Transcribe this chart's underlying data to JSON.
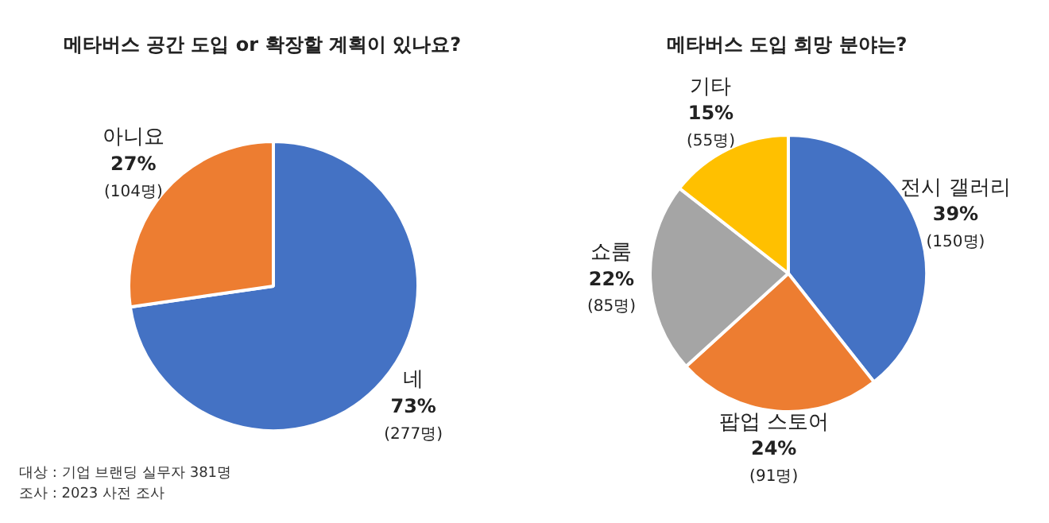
{
  "chart_data": [
    {
      "type": "pie",
      "title": "메타버스 공간 도입 or 확장할 계획이 있나요?",
      "categories": [
        "네",
        "아니요"
      ],
      "values": [
        277,
        104
      ],
      "value_labels": [
        "73%\n(277명)",
        "27%\n(104명)"
      ],
      "colors": [
        "#4472c4",
        "#ed7d31"
      ],
      "legend": false,
      "annotations": [
        "대상 : 기업 브랜딩 실무자 381명",
        "조사 : 2023 사전 조사"
      ]
    },
    {
      "type": "pie",
      "title": "메타버스 도입 희망 분야는?",
      "categories": [
        "전시 갤러리",
        "팝업 스토어",
        "쇼룸",
        "기타"
      ],
      "values": [
        150,
        91,
        85,
        55
      ],
      "value_labels": [
        "39%\n(150명)",
        "24%\n(91명)",
        "22%\n(85명)",
        "15%\n(55명)"
      ],
      "colors": [
        "#4472c4",
        "#ed7d31",
        "#a5a5a5",
        "#ffc000"
      ],
      "legend": false
    }
  ]
}
